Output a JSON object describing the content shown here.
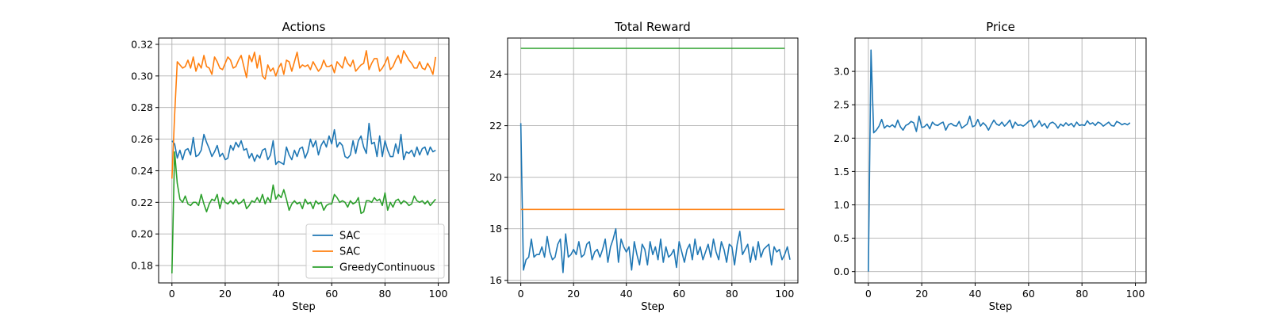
{
  "chart_data": [
    {
      "type": "line",
      "title": "Actions",
      "xlabel": "Step",
      "ylabel": "",
      "xlim": [
        -5,
        104
      ],
      "ylim": [
        0.169,
        0.324
      ],
      "xticks": [
        0,
        20,
        40,
        60,
        80,
        100
      ],
      "yticks": [
        0.18,
        0.2,
        0.22,
        0.24,
        0.26,
        0.28,
        0.3,
        0.32
      ],
      "ytick_decimals": 2,
      "grid": true,
      "legend": {
        "placement": "lower-right",
        "entries": [
          "SAC",
          "SAC",
          "GreedyContinuous"
        ]
      },
      "series": [
        {
          "name": "SAC",
          "color": "#1f77b4",
          "x_start": 0,
          "values": [
            0.259,
            0.257,
            0.248,
            0.253,
            0.247,
            0.253,
            0.254,
            0.25,
            0.261,
            0.249,
            0.25,
            0.253,
            0.263,
            0.258,
            0.254,
            0.249,
            0.252,
            0.256,
            0.249,
            0.251,
            0.247,
            0.248,
            0.256,
            0.253,
            0.258,
            0.255,
            0.259,
            0.253,
            0.254,
            0.248,
            0.251,
            0.246,
            0.25,
            0.248,
            0.253,
            0.254,
            0.247,
            0.25,
            0.259,
            0.244,
            0.246,
            0.245,
            0.244,
            0.255,
            0.25,
            0.247,
            0.253,
            0.249,
            0.254,
            0.255,
            0.248,
            0.252,
            0.26,
            0.255,
            0.259,
            0.25,
            0.256,
            0.259,
            0.255,
            0.262,
            0.257,
            0.266,
            0.255,
            0.258,
            0.256,
            0.249,
            0.248,
            0.25,
            0.259,
            0.251,
            0.259,
            0.262,
            0.255,
            0.251,
            0.27,
            0.257,
            0.258,
            0.249,
            0.262,
            0.249,
            0.259,
            0.253,
            0.249,
            0.249,
            0.257,
            0.251,
            0.263,
            0.247,
            0.252,
            0.251,
            0.253,
            0.249,
            0.255,
            0.25,
            0.254,
            0.255,
            0.25,
            0.255,
            0.252,
            0.253
          ]
        },
        {
          "name": "SAC",
          "color": "#ff7f0e",
          "x_start": 0,
          "values": [
            0.235,
            0.275,
            0.309,
            0.307,
            0.305,
            0.306,
            0.31,
            0.305,
            0.312,
            0.303,
            0.308,
            0.305,
            0.313,
            0.306,
            0.305,
            0.301,
            0.312,
            0.309,
            0.305,
            0.304,
            0.308,
            0.312,
            0.31,
            0.305,
            0.306,
            0.31,
            0.313,
            0.306,
            0.299,
            0.313,
            0.309,
            0.315,
            0.305,
            0.313,
            0.3,
            0.298,
            0.307,
            0.303,
            0.305,
            0.3,
            0.305,
            0.308,
            0.301,
            0.31,
            0.309,
            0.303,
            0.309,
            0.315,
            0.305,
            0.307,
            0.306,
            0.307,
            0.304,
            0.309,
            0.306,
            0.303,
            0.305,
            0.31,
            0.306,
            0.306,
            0.307,
            0.302,
            0.309,
            0.307,
            0.305,
            0.312,
            0.308,
            0.306,
            0.31,
            0.303,
            0.305,
            0.307,
            0.308,
            0.316,
            0.304,
            0.308,
            0.311,
            0.311,
            0.303,
            0.305,
            0.308,
            0.312,
            0.304,
            0.306,
            0.31,
            0.313,
            0.308,
            0.316,
            0.313,
            0.31,
            0.308,
            0.305,
            0.305,
            0.309,
            0.305,
            0.304,
            0.308,
            0.305,
            0.301,
            0.312
          ]
        },
        {
          "name": "GreedyContinuous",
          "color": "#2ca02c",
          "x_start": 0,
          "values": [
            0.175,
            0.252,
            0.232,
            0.222,
            0.22,
            0.224,
            0.219,
            0.218,
            0.22,
            0.22,
            0.218,
            0.225,
            0.219,
            0.214,
            0.219,
            0.222,
            0.221,
            0.225,
            0.216,
            0.223,
            0.22,
            0.219,
            0.221,
            0.219,
            0.222,
            0.219,
            0.22,
            0.222,
            0.216,
            0.218,
            0.221,
            0.22,
            0.223,
            0.22,
            0.225,
            0.219,
            0.223,
            0.22,
            0.231,
            0.222,
            0.225,
            0.223,
            0.228,
            0.222,
            0.215,
            0.219,
            0.221,
            0.219,
            0.22,
            0.216,
            0.222,
            0.219,
            0.22,
            0.216,
            0.221,
            0.219,
            0.22,
            0.215,
            0.218,
            0.219,
            0.219,
            0.225,
            0.223,
            0.22,
            0.221,
            0.22,
            0.217,
            0.221,
            0.219,
            0.22,
            0.223,
            0.213,
            0.214,
            0.221,
            0.221,
            0.22,
            0.223,
            0.221,
            0.222,
            0.218,
            0.226,
            0.215,
            0.22,
            0.217,
            0.221,
            0.222,
            0.219,
            0.221,
            0.22,
            0.218,
            0.219,
            0.224,
            0.221,
            0.22,
            0.221,
            0.219,
            0.221,
            0.218,
            0.22,
            0.222
          ]
        }
      ]
    },
    {
      "type": "line",
      "title": "Total Reward",
      "xlabel": "Step",
      "ylabel": "",
      "xlim": [
        -5,
        105
      ],
      "ylim": [
        15.9,
        25.4
      ],
      "xticks": [
        0,
        20,
        40,
        60,
        80,
        100
      ],
      "yticks": [
        16,
        18,
        20,
        22,
        24
      ],
      "ytick_decimals": 0,
      "grid": true,
      "series": [
        {
          "color": "#1f77b4",
          "x_start": 0,
          "values": [
            22.1,
            16.4,
            16.8,
            16.9,
            17.6,
            16.9,
            17.0,
            17.0,
            17.3,
            16.9,
            17.7,
            17.1,
            16.8,
            16.9,
            17.4,
            17.6,
            16.3,
            17.8,
            16.9,
            17.0,
            17.2,
            17.0,
            17.5,
            16.9,
            17.0,
            17.4,
            17.5,
            16.8,
            17.1,
            17.2,
            16.9,
            17.2,
            17.6,
            16.7,
            17.3,
            17.6,
            18.0,
            16.7,
            17.6,
            17.3,
            17.1,
            17.3,
            16.4,
            17.5,
            17.0,
            16.6,
            17.4,
            17.2,
            16.6,
            17.5,
            17.0,
            17.3,
            16.8,
            17.6,
            16.7,
            17.3,
            16.9,
            17.0,
            17.2,
            16.5,
            17.5,
            17.1,
            16.7,
            17.2,
            17.4,
            16.8,
            17.6,
            17.0,
            17.3,
            16.8,
            17.1,
            17.4,
            16.9,
            17.6,
            17.1,
            16.8,
            17.5,
            17.2,
            16.7,
            17.4,
            17.3,
            16.6,
            17.4,
            17.9,
            17.0,
            17.2,
            17.4,
            16.7,
            17.3,
            16.8,
            17.5,
            16.9,
            17.2,
            17.3,
            17.4,
            16.6,
            17.3,
            17.1,
            17.2,
            16.8,
            17.0,
            17.3,
            16.8
          ]
        },
        {
          "color": "#ff7f0e",
          "x_start": 0,
          "values": [
            18.75,
            18.75,
            18.75,
            18.75,
            18.75,
            18.75,
            18.75,
            18.75,
            18.75,
            18.75,
            18.75,
            18.75,
            18.75,
            18.75,
            18.75,
            18.75,
            18.75,
            18.75,
            18.75,
            18.75,
            18.75,
            18.75,
            18.75,
            18.75,
            18.75,
            18.75,
            18.75,
            18.75,
            18.75,
            18.75,
            18.75,
            18.75,
            18.75,
            18.75,
            18.75,
            18.75,
            18.75,
            18.75,
            18.75,
            18.75,
            18.75,
            18.75,
            18.75,
            18.75,
            18.75,
            18.75,
            18.75,
            18.75,
            18.75,
            18.75,
            18.75,
            18.75,
            18.75,
            18.75,
            18.75,
            18.75,
            18.75,
            18.75,
            18.75,
            18.75,
            18.75,
            18.75,
            18.75,
            18.75,
            18.75,
            18.75,
            18.75,
            18.75,
            18.75,
            18.75,
            18.75,
            18.75,
            18.75,
            18.75,
            18.75,
            18.75,
            18.75,
            18.75,
            18.75,
            18.75,
            18.75,
            18.75,
            18.75,
            18.75,
            18.75,
            18.75,
            18.75,
            18.75,
            18.75,
            18.75,
            18.75,
            18.75,
            18.75,
            18.75,
            18.75,
            18.75,
            18.75,
            18.75,
            18.75,
            18.75,
            18.75
          ]
        },
        {
          "color": "#2ca02c",
          "x_start": 0,
          "values": [
            25.0,
            25.0,
            25.0,
            25.0,
            25.0,
            25.0,
            25.0,
            25.0,
            25.0,
            25.0,
            25.0,
            25.0,
            25.0,
            25.0,
            25.0,
            25.0,
            25.0,
            25.0,
            25.0,
            25.0,
            25.0,
            25.0,
            25.0,
            25.0,
            25.0,
            25.0,
            25.0,
            25.0,
            25.0,
            25.0,
            25.0,
            25.0,
            25.0,
            25.0,
            25.0,
            25.0,
            25.0,
            25.0,
            25.0,
            25.0,
            25.0,
            25.0,
            25.0,
            25.0,
            25.0,
            25.0,
            25.0,
            25.0,
            25.0,
            25.0,
            25.0,
            25.0,
            25.0,
            25.0,
            25.0,
            25.0,
            25.0,
            25.0,
            25.0,
            25.0,
            25.0,
            25.0,
            25.0,
            25.0,
            25.0,
            25.0,
            25.0,
            25.0,
            25.0,
            25.0,
            25.0,
            25.0,
            25.0,
            25.0,
            25.0,
            25.0,
            25.0,
            25.0,
            25.0,
            25.0,
            25.0,
            25.0,
            25.0,
            25.0,
            25.0,
            25.0,
            25.0,
            25.0,
            25.0,
            25.0,
            25.0,
            25.0,
            25.0,
            25.0,
            25.0,
            25.0,
            25.0,
            25.0,
            25.0,
            25.0,
            25.0
          ]
        }
      ]
    },
    {
      "type": "line",
      "title": "Price",
      "xlabel": "Step",
      "ylabel": "",
      "xlim": [
        -5,
        104
      ],
      "ylim": [
        -0.17,
        3.5
      ],
      "xticks": [
        0,
        20,
        40,
        60,
        80,
        100
      ],
      "yticks": [
        0.0,
        0.5,
        1.0,
        1.5,
        2.0,
        2.5,
        3.0
      ],
      "ytick_decimals": 1,
      "grid": true,
      "series": [
        {
          "color": "#1f77b4",
          "x_start": 0,
          "values": [
            0.0,
            3.32,
            2.08,
            2.12,
            2.18,
            2.28,
            2.15,
            2.19,
            2.17,
            2.2,
            2.16,
            2.27,
            2.17,
            2.12,
            2.19,
            2.21,
            2.25,
            2.23,
            2.1,
            2.33,
            2.16,
            2.17,
            2.21,
            2.14,
            2.24,
            2.2,
            2.19,
            2.22,
            2.24,
            2.12,
            2.2,
            2.22,
            2.19,
            2.18,
            2.25,
            2.15,
            2.18,
            2.21,
            2.33,
            2.17,
            2.19,
            2.28,
            2.18,
            2.23,
            2.19,
            2.12,
            2.2,
            2.27,
            2.21,
            2.19,
            2.24,
            2.18,
            2.22,
            2.27,
            2.15,
            2.24,
            2.19,
            2.2,
            2.18,
            2.21,
            2.25,
            2.27,
            2.16,
            2.2,
            2.26,
            2.18,
            2.22,
            2.15,
            2.22,
            2.24,
            2.21,
            2.15,
            2.21,
            2.18,
            2.23,
            2.19,
            2.22,
            2.17,
            2.24,
            2.19,
            2.2,
            2.19,
            2.26,
            2.21,
            2.23,
            2.19,
            2.24,
            2.22,
            2.18,
            2.21,
            2.24,
            2.19,
            2.18,
            2.25,
            2.23,
            2.2,
            2.22,
            2.2,
            2.23
          ]
        }
      ]
    }
  ]
}
